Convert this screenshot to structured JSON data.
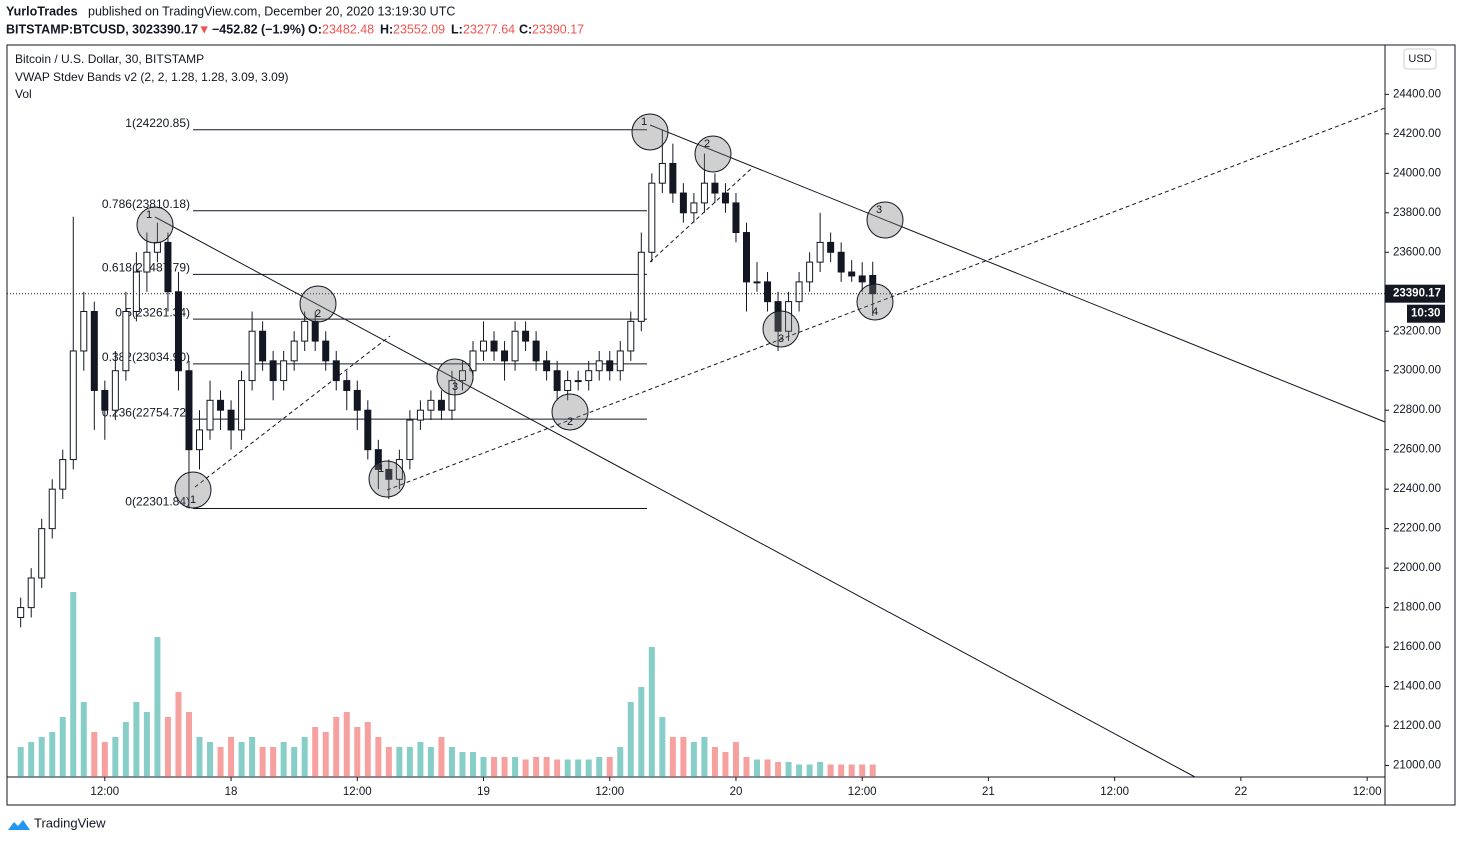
{
  "header": {
    "publisher": "YurloTrades",
    "published": "published on TradingView.com, December 20, 2020 13:19:30 UTC",
    "symbol": "BITSTAMP:BTCUSD, 30",
    "arrow": "▼",
    "change": "−452.82 (−1.9%)",
    "o": "O:",
    "h": "H:",
    "l": "L:",
    "c": "C:"
  },
  "legend": {
    "series": "Bitcoin / U.S. Dollar, 30, BITSTAMP",
    "indicator": "VWAP Stdev Bands v2 (2, 2, 1.28, 1.28, 3.09, 3.09)",
    "volume": "Vol"
  },
  "currency": "USD",
  "countdown": "10:30",
  "footer": "TradingView",
  "chart_data": {
    "type": "candlestick",
    "up_color": "#26a69a",
    "down_color": "#ef5350",
    "candle_color": "#131722",
    "x": [
      4,
      5,
      6,
      7,
      8,
      9,
      10,
      11,
      12,
      13,
      14,
      15,
      16,
      17,
      18,
      19,
      20,
      21,
      22,
      23,
      24,
      25,
      26,
      27,
      28,
      29,
      30,
      31,
      32,
      33,
      34,
      35,
      36,
      37,
      38,
      39,
      40,
      41,
      42,
      43,
      44,
      45,
      46,
      47,
      48,
      49,
      50,
      51,
      52,
      53,
      54,
      55,
      56,
      57,
      58,
      59,
      60,
      61,
      62,
      63,
      64,
      65,
      66,
      67,
      68,
      69,
      70,
      71,
      72,
      73,
      74,
      75,
      76,
      77,
      78,
      79,
      80,
      81,
      82,
      83,
      84,
      85
    ],
    "ohlc": [
      [
        21750,
        21850,
        21700,
        21800
      ],
      [
        21800,
        22000,
        21750,
        21950
      ],
      [
        21950,
        22250,
        21900,
        22200
      ],
      [
        22200,
        22450,
        22150,
        22400
      ],
      [
        22400,
        22600,
        22350,
        22550
      ],
      [
        22550,
        23780,
        22500,
        23100
      ],
      [
        23100,
        23400,
        23000,
        23300
      ],
      [
        23300,
        23350,
        22700,
        22900
      ],
      [
        22900,
        22950,
        22650,
        22800
      ],
      [
        22800,
        23100,
        22750,
        23000
      ],
      [
        23000,
        23400,
        22950,
        23300
      ],
      [
        23300,
        23600,
        23250,
        23500
      ],
      [
        23500,
        23700,
        23400,
        23600
      ],
      [
        23600,
        23750,
        23550,
        23650
      ],
      [
        23650,
        23700,
        23300,
        23400
      ],
      [
        23400,
        23500,
        22900,
        23000
      ],
      [
        23000,
        23050,
        22302,
        22600
      ],
      [
        22600,
        22800,
        22500,
        22700
      ],
      [
        22700,
        22950,
        22650,
        22850
      ],
      [
        22850,
        22900,
        22700,
        22800
      ],
      [
        22800,
        22850,
        22600,
        22700
      ],
      [
        22700,
        23000,
        22650,
        22950
      ],
      [
        22950,
        23300,
        22900,
        23200
      ],
      [
        23200,
        23250,
        23000,
        23050
      ],
      [
        23050,
        23100,
        22850,
        22950
      ],
      [
        22950,
        23100,
        22900,
        23050
      ],
      [
        23050,
        23200,
        23000,
        23150
      ],
      [
        23150,
        23300,
        23100,
        23250
      ],
      [
        23250,
        23300,
        23100,
        23150
      ],
      [
        23150,
        23200,
        23000,
        23050
      ],
      [
        23050,
        23100,
        22900,
        22950
      ],
      [
        22950,
        23000,
        22800,
        22900
      ],
      [
        22900,
        22950,
        22700,
        22800
      ],
      [
        22800,
        22850,
        22550,
        22600
      ],
      [
        22600,
        22650,
        22400,
        22500
      ],
      [
        22500,
        22550,
        22350,
        22450
      ],
      [
        22450,
        22600,
        22400,
        22550
      ],
      [
        22550,
        22800,
        22500,
        22750
      ],
      [
        22750,
        22850,
        22700,
        22800
      ],
      [
        22800,
        22900,
        22750,
        22850
      ],
      [
        22850,
        22900,
        22750,
        22800
      ],
      [
        22800,
        23000,
        22750,
        22950
      ],
      [
        22950,
        23050,
        22900,
        23000
      ],
      [
        23000,
        23150,
        22950,
        23100
      ],
      [
        23100,
        23250,
        23050,
        23150
      ],
      [
        23150,
        23200,
        23050,
        23100
      ],
      [
        23100,
        23150,
        22950,
        23050
      ],
      [
        23050,
        23250,
        23000,
        23200
      ],
      [
        23200,
        23250,
        23100,
        23150
      ],
      [
        23150,
        23200,
        23000,
        23050
      ],
      [
        23050,
        23100,
        22950,
        23000
      ],
      [
        23000,
        23050,
        22850,
        22900
      ],
      [
        22900,
        23000,
        22850,
        22950
      ],
      [
        22950,
        23000,
        22900,
        22950
      ],
      [
        22950,
        23050,
        22900,
        23000
      ],
      [
        23000,
        23100,
        22950,
        23050
      ],
      [
        23050,
        23100,
        22950,
        23000
      ],
      [
        23000,
        23150,
        22950,
        23100
      ],
      [
        23100,
        23300,
        23050,
        23250
      ],
      [
        23250,
        23700,
        23200,
        23600
      ],
      [
        23600,
        24000,
        23550,
        23950
      ],
      [
        23950,
        24220.85,
        23900,
        24050
      ],
      [
        24050,
        24150,
        23850,
        23900
      ],
      [
        23900,
        23950,
        23750,
        23800
      ],
      [
        23800,
        23900,
        23750,
        23850
      ],
      [
        23850,
        24100,
        23800,
        23950
      ],
      [
        23950,
        24000,
        23850,
        23900
      ],
      [
        23900,
        23950,
        23800,
        23850
      ],
      [
        23850,
        23900,
        23650,
        23700
      ],
      [
        23700,
        23750,
        23300,
        23450
      ],
      [
        23450,
        23550,
        23400,
        23450
      ],
      [
        23450,
        23500,
        23300,
        23350
      ],
      [
        23350,
        23400,
        23100,
        23200
      ],
      [
        23200,
        23400,
        23150,
        23350
      ],
      [
        23350,
        23500,
        23300,
        23450
      ],
      [
        23450,
        23600,
        23400,
        23550
      ],
      [
        23550,
        23800,
        23500,
        23650
      ],
      [
        23650,
        23700,
        23550,
        23600
      ],
      [
        23600,
        23650,
        23450,
        23500
      ],
      [
        23500,
        23560,
        23450,
        23480
      ],
      [
        23480,
        23550,
        23400,
        23450
      ],
      [
        23482.48,
        23552.09,
        23277.64,
        23390.17
      ]
    ],
    "volume": [
      60,
      70,
      80,
      90,
      120,
      370,
      150,
      90,
      70,
      80,
      110,
      150,
      130,
      280,
      120,
      170,
      130,
      80,
      70,
      60,
      80,
      70,
      80,
      60,
      60,
      70,
      60,
      80,
      100,
      90,
      120,
      130,
      100,
      110,
      80,
      60,
      60,
      60,
      70,
      60,
      80,
      60,
      50,
      50,
      40,
      40,
      40,
      40,
      35,
      40,
      40,
      35,
      35,
      35,
      35,
      40,
      40,
      60,
      150,
      180,
      260,
      120,
      80,
      80,
      70,
      80,
      60,
      50,
      70,
      40,
      35,
      35,
      30,
      30,
      25,
      25,
      30,
      25,
      25,
      25,
      25,
      25
    ],
    "xlim": [
      2.7,
      133.7
    ],
    "xticks": [
      {
        "value": 12,
        "label": "12:00"
      },
      {
        "value": 24,
        "label": "18"
      },
      {
        "value": 36,
        "label": "12:00"
      },
      {
        "value": 48,
        "label": "19"
      },
      {
        "value": 60,
        "label": "12:00"
      },
      {
        "value": 72,
        "label": "20"
      },
      {
        "value": 84,
        "label": "12:00"
      },
      {
        "value": 96,
        "label": "21"
      },
      {
        "value": 108,
        "label": "12:00"
      },
      {
        "value": 120,
        "label": "22"
      },
      {
        "value": 132,
        "label": "12:00"
      }
    ],
    "ylim": [
      20800,
      24650
    ],
    "yticks": [
      {
        "value": 21000,
        "label": "21000.00"
      },
      {
        "value": 21200,
        "label": "21200.00"
      },
      {
        "value": 21400,
        "label": "21400.00"
      },
      {
        "value": 21600,
        "label": "21600.00"
      },
      {
        "value": 21800,
        "label": "21800.00"
      },
      {
        "value": 22000,
        "label": "22000.00"
      },
      {
        "value": 22200,
        "label": "22200.00"
      },
      {
        "value": 22400,
        "label": "22400.00"
      },
      {
        "value": 22600,
        "label": "22600.00"
      },
      {
        "value": 22800,
        "label": "22800.00"
      },
      {
        "value": 23000,
        "label": "23000.00"
      },
      {
        "value": 23200,
        "label": "23200.00"
      },
      {
        "value": 23400,
        "label": "23400.00"
      },
      {
        "value": 23600,
        "label": "23600.00"
      },
      {
        "value": 23800,
        "label": "23800.00"
      },
      {
        "value": 24000,
        "label": "24000.00"
      },
      {
        "value": 24200,
        "label": "24200.00"
      },
      {
        "value": 24400,
        "label": "24400.00"
      }
    ],
    "fib_levels": [
      {
        "value": 24220.85,
        "label": "1(24220.85)"
      },
      {
        "value": 23810.18,
        "label": "0.786(23810.18)"
      },
      {
        "value": 23487.79,
        "label": "0.618(23487.79)"
      },
      {
        "value": 23261.34,
        "label": "0.5(23261.34)"
      },
      {
        "value": 23034.9,
        "label": "0.382(23034.90)"
      },
      {
        "value": 22754.72,
        "label": "0.236(22754.72)"
      },
      {
        "value": 22301.84,
        "label": "0(22301.84)"
      }
    ],
    "pattern_labels": [
      "1",
      "2",
      "3",
      "1",
      "2",
      "3",
      "4",
      "1",
      "2",
      "3",
      "1"
    ]
  }
}
